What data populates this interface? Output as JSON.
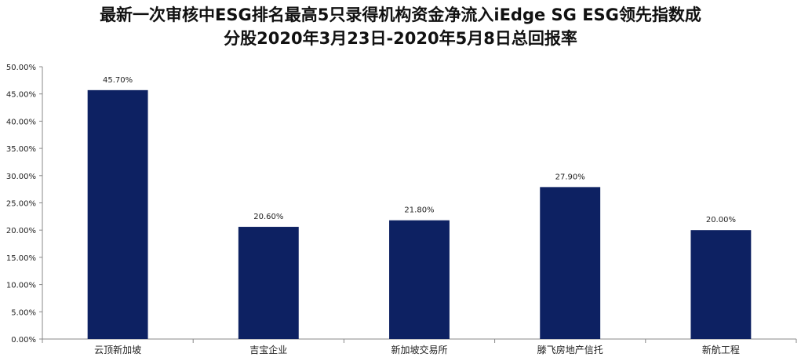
{
  "chart_data": {
    "type": "bar",
    "title_line1": "最新一次审核中ESG排名最高5只录得机构资金净流入iEdge SG ESG领先指数成",
    "title_line2": "分股2020年3月23日-2020年5月8日总回报率",
    "categories": [
      "云顶新加坡",
      "吉宝企业",
      "新加坡交易所",
      "滕飞房地产信托",
      "新航工程"
    ],
    "values": [
      45.7,
      20.6,
      21.8,
      27.9,
      20.0
    ],
    "data_labels": [
      "45.70%",
      "20.60%",
      "21.80%",
      "27.90%",
      "20.00%"
    ],
    "y_ticks": [
      "0.00%",
      "5.00%",
      "10.00%",
      "15.00%",
      "20.00%",
      "25.00%",
      "30.00%",
      "35.00%",
      "40.00%",
      "45.00%",
      "50.00%"
    ],
    "ylim": [
      0,
      50
    ],
    "xlabel": "",
    "ylabel": "",
    "grid": false,
    "bar_color": "#0d2162"
  }
}
